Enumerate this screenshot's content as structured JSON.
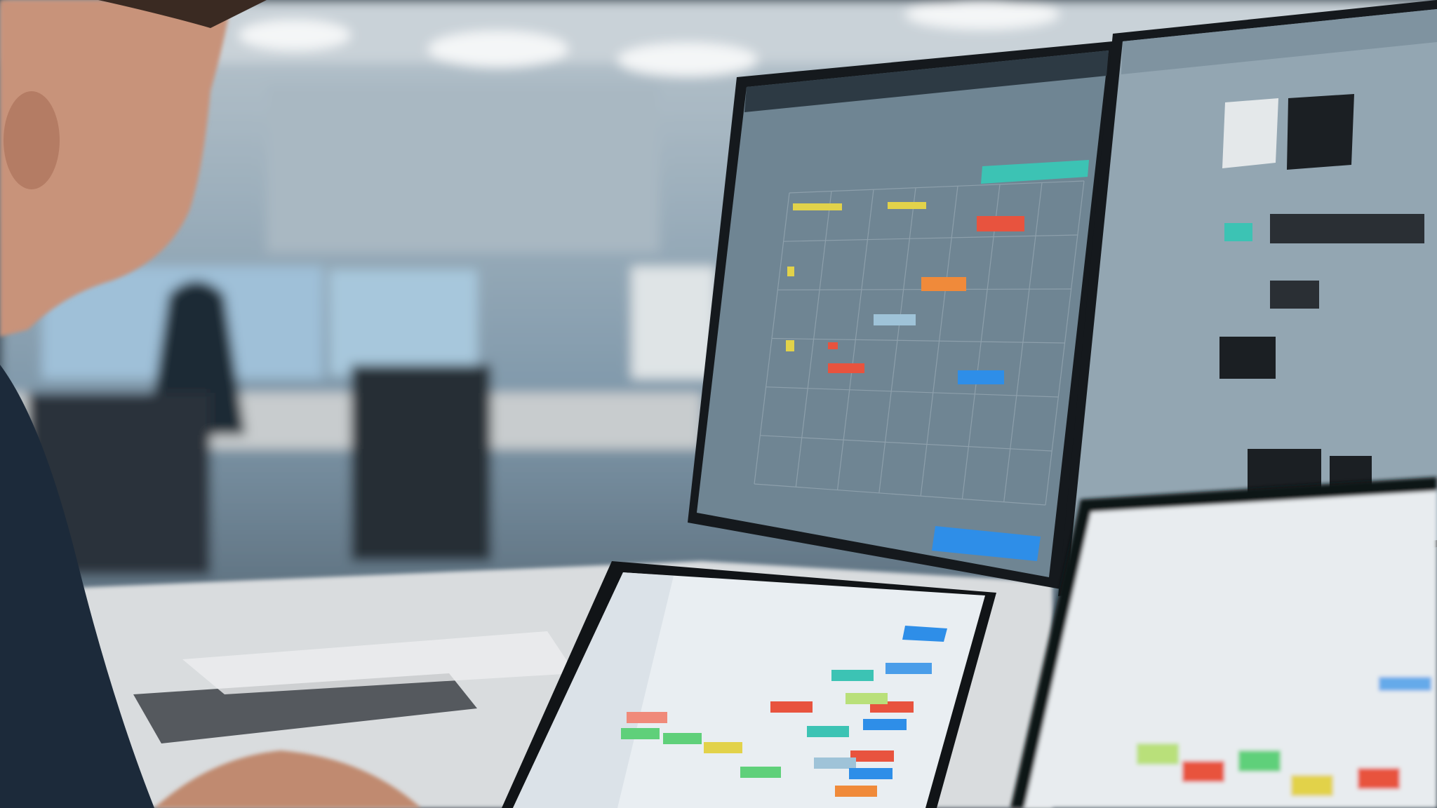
{
  "scene": {
    "description_type": "photo",
    "colors": {
      "wall": "#8aa3b4",
      "ceiling": "#c9d2d8",
      "desk": "#d9dcde",
      "monitor_screen": "#6f8593",
      "right_screen": "#93a6b2",
      "laptop_screen": "#e9eef2",
      "accent_teal": "#3cc3b4",
      "accent_blue": "#2e8ee8",
      "accent_orange": "#f08a3a",
      "accent_red": "#e8533e",
      "accent_yellow": "#e2d24a",
      "accent_green": "#5fd07a",
      "shirt": "#1c2a3a",
      "skin": "#c8937a"
    }
  }
}
